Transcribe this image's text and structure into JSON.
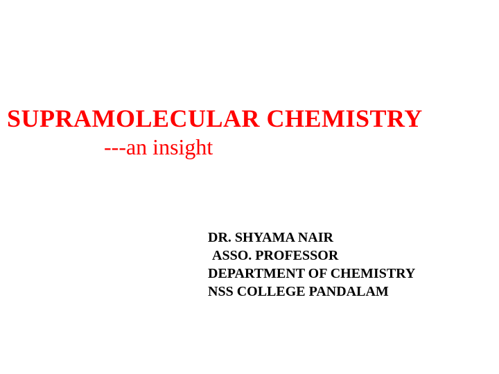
{
  "title": {
    "main": "SUPRAMOLECULAR  CHEMISTRY",
    "subtitle": "---an insight",
    "color": "#ff0000",
    "main_fontsize": 36,
    "subtitle_fontsize": 32
  },
  "author": {
    "lines": [
      "DR. SHYAMA NAIR",
      "ASSO. PROFESSOR",
      "DEPARTMENT OF CHEMISTRY",
      "NSS COLLEGE PANDALAM"
    ],
    "color": "#000000",
    "fontsize": 20
  },
  "background_color": "#ffffff"
}
